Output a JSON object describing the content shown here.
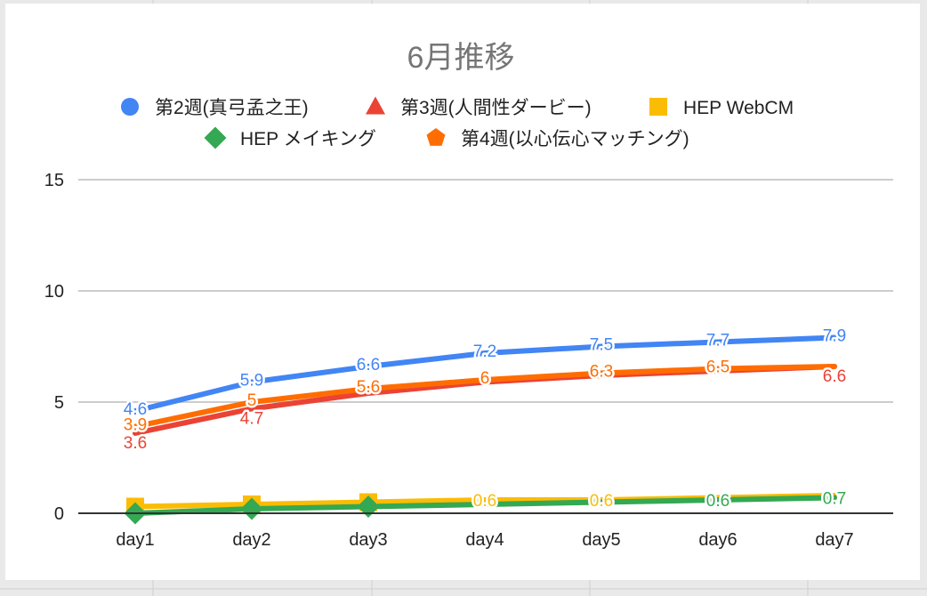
{
  "chart_data": {
    "type": "line",
    "title": "6月推移",
    "xlabel": "",
    "ylabel": "",
    "categories": [
      "day1",
      "day2",
      "day3",
      "day4",
      "day5",
      "day6",
      "day7"
    ],
    "ylim": [
      0,
      15
    ],
    "yticks": [
      0,
      5,
      10,
      15
    ],
    "grid": true,
    "legend_position": "top",
    "series": [
      {
        "name": "第2週(真弓孟之王)",
        "color": "#4285f4",
        "marker": "circle",
        "values": [
          4.6,
          5.9,
          6.6,
          7.2,
          7.5,
          7.7,
          7.9
        ],
        "labels": [
          "4.6",
          "5.9",
          "6.6",
          "7.2",
          "7.5",
          "7.7",
          "7.9"
        ]
      },
      {
        "name": "第3週(人間性ダービー)",
        "color": "#ea4335",
        "marker": "triangle",
        "values": [
          3.6,
          4.7,
          5.4,
          5.9,
          6.2,
          6.4,
          6.6
        ],
        "labels": [
          "3.6",
          "4.7",
          "",
          "",
          "",
          "",
          "6.6"
        ]
      },
      {
        "name": "HEP WebCM",
        "color": "#fbbc04",
        "marker": "square",
        "values": [
          0.3,
          0.4,
          0.5,
          0.6,
          0.6,
          0.7,
          0.8
        ],
        "labels": [
          "",
          "",
          "",
          "0.6",
          "0.6",
          "",
          ""
        ]
      },
      {
        "name": "HEP メイキング",
        "color": "#34a853",
        "marker": "diamond",
        "values": [
          0.0,
          0.2,
          0.3,
          0.4,
          0.5,
          0.6,
          0.7
        ],
        "labels": [
          "",
          "",
          "",
          "",
          "",
          "0.6",
          "0.7"
        ]
      },
      {
        "name": "第4週(以心伝心マッチング)",
        "color": "#ff6d01",
        "marker": "pentagon",
        "values": [
          3.9,
          5.0,
          5.6,
          6.0,
          6.3,
          6.5,
          6.6
        ],
        "labels": [
          "3.9",
          "5",
          "5.6",
          "6",
          "6.3",
          "6.5",
          ""
        ]
      }
    ]
  }
}
